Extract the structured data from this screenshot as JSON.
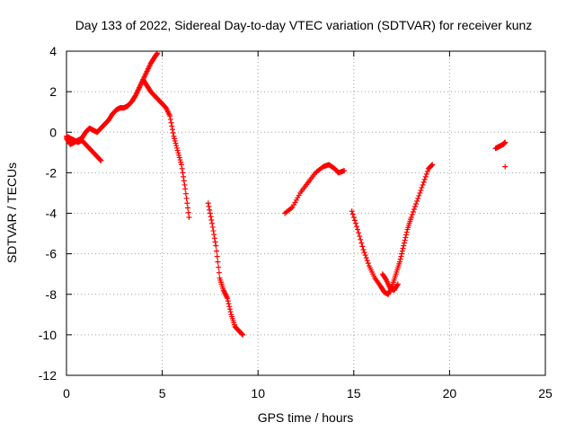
{
  "chart_data": {
    "type": "scatter",
    "title": "Day 133 of 2022, Sidereal Day-to-day VTEC variation (SDTVAR) for receiver kunz",
    "xlabel": "GPS time / hours",
    "ylabel": "SDTVAR / TECUs",
    "xlim": [
      0,
      25
    ],
    "ylim": [
      -12,
      4
    ],
    "xticks": [
      0,
      5,
      10,
      15,
      20,
      25
    ],
    "yticks": [
      -12,
      -10,
      -8,
      -6,
      -4,
      -2,
      0,
      2,
      4
    ],
    "grid": true,
    "marker": "+",
    "color": "#ff0000",
    "series": [
      {
        "name": "seg-a",
        "x": [
          0.0,
          0.2,
          0.4,
          0.6,
          0.8,
          1.0,
          1.2,
          1.4,
          1.6,
          1.8,
          2.0,
          2.2,
          2.4,
          2.6,
          2.8,
          3.0,
          3.2,
          3.4,
          3.6,
          3.8,
          4.0,
          4.2,
          4.4,
          4.6,
          4.75
        ],
        "y": [
          -0.3,
          -0.6,
          -0.5,
          -0.4,
          -0.3,
          0.0,
          0.2,
          0.1,
          0.0,
          0.2,
          0.4,
          0.6,
          0.9,
          1.1,
          1.2,
          1.2,
          1.3,
          1.5,
          1.8,
          2.2,
          2.6,
          3.0,
          3.4,
          3.7,
          3.9
        ]
      },
      {
        "name": "seg-b",
        "x": [
          0.0,
          0.2,
          0.4,
          0.6,
          0.8,
          1.0,
          1.2,
          1.4,
          1.6,
          1.8
        ],
        "y": [
          -0.2,
          -0.3,
          -0.4,
          -0.5,
          -0.4,
          -0.6,
          -0.8,
          -1.0,
          -1.2,
          -1.4
        ]
      },
      {
        "name": "seg-c",
        "x": [
          4.0,
          4.2,
          4.4,
          4.6,
          4.8,
          5.0,
          5.2,
          5.4,
          5.6,
          5.8,
          6.0,
          6.2,
          6.4
        ],
        "y": [
          2.6,
          2.3,
          2.0,
          1.8,
          1.6,
          1.4,
          1.2,
          0.8,
          -0.2,
          -0.9,
          -1.6,
          -2.8,
          -4.2
        ]
      },
      {
        "name": "seg-d",
        "x": [
          7.4,
          7.6,
          7.8,
          8.0,
          8.2,
          8.4,
          8.6,
          8.8,
          9.0,
          9.2
        ],
        "y": [
          -3.5,
          -4.5,
          -5.6,
          -7.2,
          -7.8,
          -8.2,
          -9.0,
          -9.6,
          -9.8,
          -10.0
        ]
      },
      {
        "name": "seg-e",
        "x": [
          11.4,
          11.8,
          12.2,
          12.6,
          13.0,
          13.4,
          13.7,
          14.0,
          14.2,
          14.5
        ],
        "y": [
          -4.0,
          -3.7,
          -3.0,
          -2.5,
          -2.0,
          -1.7,
          -1.6,
          -1.8,
          -2.0,
          -1.9
        ]
      },
      {
        "name": "seg-f",
        "x": [
          14.9,
          15.2,
          15.5,
          15.8,
          16.1,
          16.4,
          16.6,
          16.8,
          17.0,
          17.2,
          17.4,
          17.6,
          17.8,
          18.0,
          18.3,
          18.6,
          18.9,
          19.1
        ],
        "y": [
          -3.9,
          -4.8,
          -5.8,
          -6.6,
          -7.2,
          -7.6,
          -7.9,
          -8.0,
          -7.6,
          -7.0,
          -6.4,
          -5.6,
          -4.8,
          -4.2,
          -3.4,
          -2.6,
          -1.8,
          -1.6
        ]
      },
      {
        "name": "seg-g",
        "x": [
          16.5,
          16.7,
          16.9,
          17.1,
          17.3
        ],
        "y": [
          -7.0,
          -7.3,
          -7.7,
          -7.8,
          -7.5
        ]
      },
      {
        "name": "seg-h",
        "x": [
          22.4,
          22.6,
          22.8,
          22.9
        ],
        "y": [
          -0.8,
          -0.7,
          -0.6,
          -0.5
        ]
      },
      {
        "name": "seg-i",
        "x": [
          22.9
        ],
        "y": [
          -1.7
        ]
      }
    ]
  }
}
